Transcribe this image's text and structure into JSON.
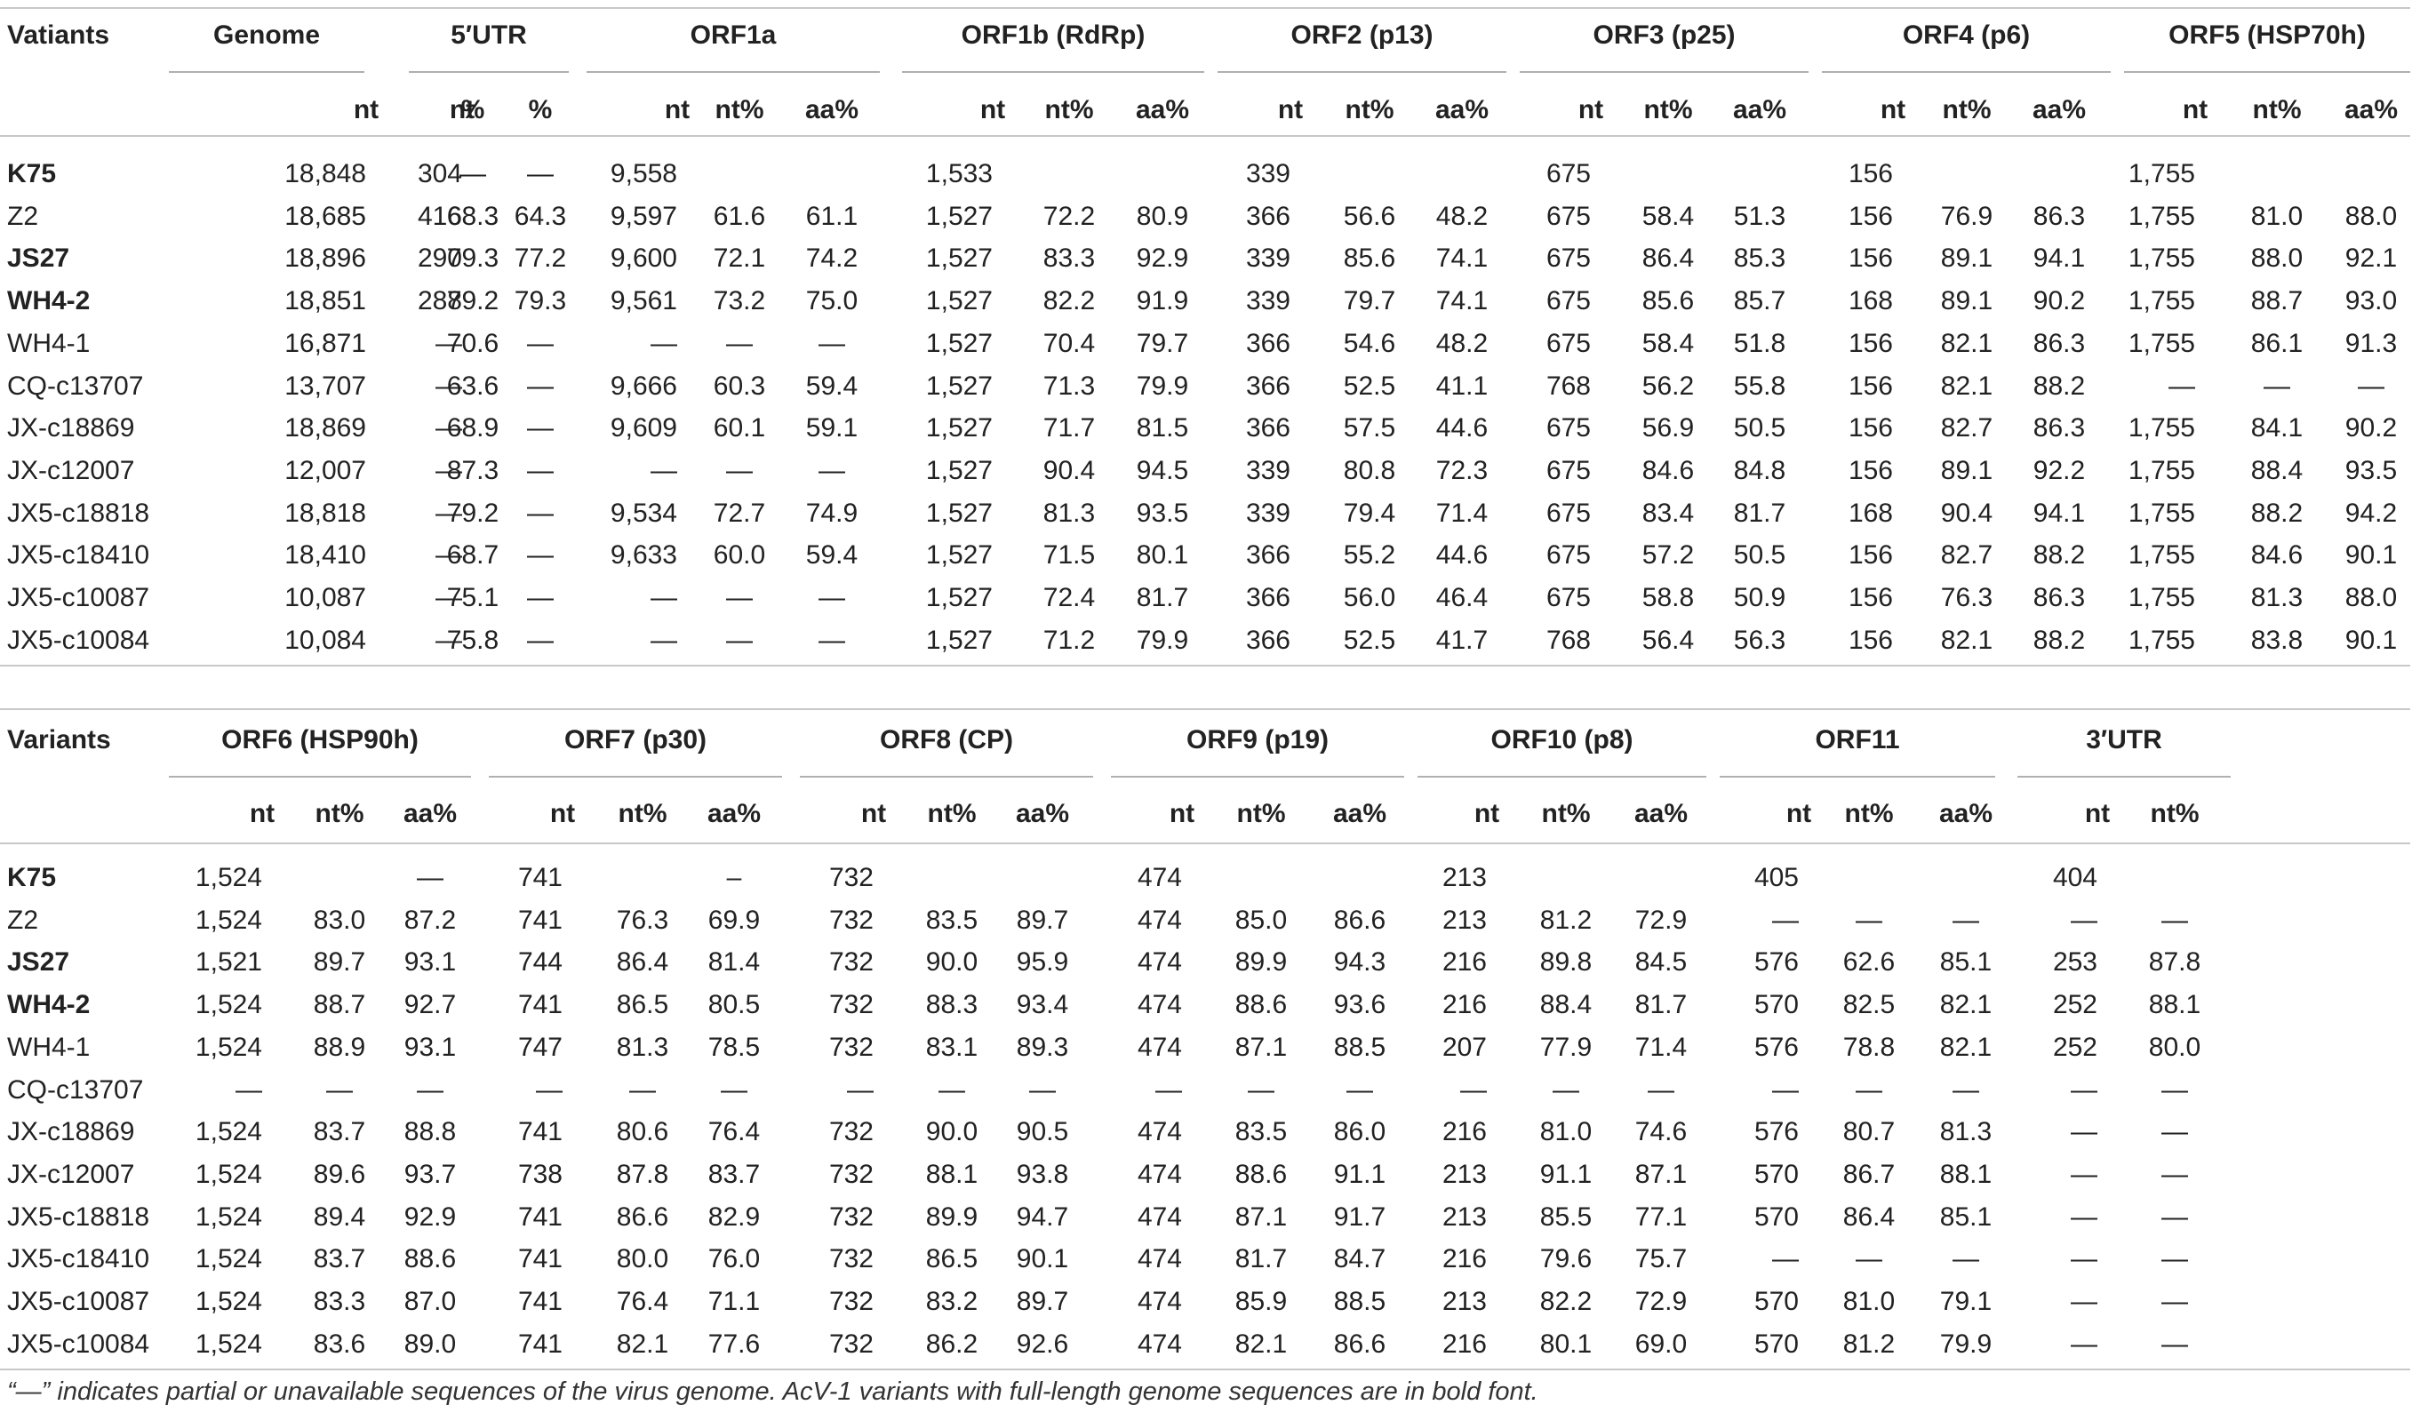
{
  "table1": {
    "variant_label": "Vatiants",
    "groups": [
      {
        "label": "Genome",
        "cols": [
          "nt",
          "%"
        ]
      },
      {
        "label": "5′UTR",
        "cols": [
          "nt",
          "%"
        ]
      },
      {
        "label": "ORF1a",
        "cols": [
          "nt",
          "nt%",
          "aa%"
        ]
      },
      {
        "label": "ORF1b (RdRp)",
        "cols": [
          "nt",
          "nt%",
          "aa%"
        ]
      },
      {
        "label": "ORF2 (p13)",
        "cols": [
          "nt",
          "nt%",
          "aa%"
        ]
      },
      {
        "label": "ORF3 (p25)",
        "cols": [
          "nt",
          "nt%",
          "aa%"
        ]
      },
      {
        "label": "ORF4 (p6)",
        "cols": [
          "nt",
          "nt%",
          "aa%"
        ]
      },
      {
        "label": "ORF5 (HSP70h)",
        "cols": [
          "nt",
          "nt%",
          "aa%"
        ]
      }
    ],
    "rows": [
      {
        "name": "K75",
        "bold": true,
        "cells": [
          "18,848",
          "—",
          "304",
          "—",
          "9,558",
          "",
          "",
          "1,533",
          "",
          "",
          "339",
          "",
          "",
          "675",
          "",
          "",
          "156",
          "",
          "",
          "1,755",
          "",
          ""
        ]
      },
      {
        "name": "Z2",
        "bold": false,
        "cells": [
          "18,685",
          "68.3",
          "416",
          "64.3",
          "9,597",
          "61.6",
          "61.1",
          "1,527",
          "72.2",
          "80.9",
          "366",
          "56.6",
          "48.2",
          "675",
          "58.4",
          "51.3",
          "156",
          "76.9",
          "86.3",
          "1,755",
          "81.0",
          "88.0"
        ]
      },
      {
        "name": "JS27",
        "bold": true,
        "cells": [
          "18,896",
          "79.3",
          "290",
          "77.2",
          "9,600",
          "72.1",
          "74.2",
          "1,527",
          "83.3",
          "92.9",
          "339",
          "85.6",
          "74.1",
          "675",
          "86.4",
          "85.3",
          "156",
          "89.1",
          "94.1",
          "1,755",
          "88.0",
          "92.1"
        ]
      },
      {
        "name": "WH4-2",
        "bold": true,
        "cells": [
          "18,851",
          "79.2",
          "288",
          "79.3",
          "9,561",
          "73.2",
          "75.0",
          "1,527",
          "82.2",
          "91.9",
          "339",
          "79.7",
          "74.1",
          "675",
          "85.6",
          "85.7",
          "168",
          "89.1",
          "90.2",
          "1,755",
          "88.7",
          "93.0"
        ]
      },
      {
        "name": "WH4-1",
        "bold": false,
        "cells": [
          "16,871",
          "70.6",
          "—",
          "—",
          "—",
          "—",
          "—",
          "1,527",
          "70.4",
          "79.7",
          "366",
          "54.6",
          "48.2",
          "675",
          "58.4",
          "51.8",
          "156",
          "82.1",
          "86.3",
          "1,755",
          "86.1",
          "91.3"
        ]
      },
      {
        "name": "CQ-c13707",
        "bold": false,
        "cells": [
          "13,707",
          "63.6",
          "—",
          "—",
          "9,666",
          "60.3",
          "59.4",
          "1,527",
          "71.3",
          "79.9",
          "366",
          "52.5",
          "41.1",
          "768",
          "56.2",
          "55.8",
          "156",
          "82.1",
          "88.2",
          "—",
          "—",
          "—"
        ]
      },
      {
        "name": "JX-c18869",
        "bold": false,
        "cells": [
          "18,869",
          "68.9",
          "—",
          "—",
          "9,609",
          "60.1",
          "59.1",
          "1,527",
          "71.7",
          "81.5",
          "366",
          "57.5",
          "44.6",
          "675",
          "56.9",
          "50.5",
          "156",
          "82.7",
          "86.3",
          "1,755",
          "84.1",
          "90.2"
        ]
      },
      {
        "name": "JX-c12007",
        "bold": false,
        "cells": [
          "12,007",
          "87.3",
          "—",
          "—",
          "—",
          "—",
          "—",
          "1,527",
          "90.4",
          "94.5",
          "339",
          "80.8",
          "72.3",
          "675",
          "84.6",
          "84.8",
          "156",
          "89.1",
          "92.2",
          "1,755",
          "88.4",
          "93.5"
        ]
      },
      {
        "name": "JX5-c18818",
        "bold": false,
        "cells": [
          "18,818",
          "79.2",
          "—",
          "—",
          "9,534",
          "72.7",
          "74.9",
          "1,527",
          "81.3",
          "93.5",
          "339",
          "79.4",
          "71.4",
          "675",
          "83.4",
          "81.7",
          "168",
          "90.4",
          "94.1",
          "1,755",
          "88.2",
          "94.2"
        ]
      },
      {
        "name": "JX5-c18410",
        "bold": false,
        "cells": [
          "18,410",
          "68.7",
          "—",
          "—",
          "9,633",
          "60.0",
          "59.4",
          "1,527",
          "71.5",
          "80.1",
          "366",
          "55.2",
          "44.6",
          "675",
          "57.2",
          "50.5",
          "156",
          "82.7",
          "88.2",
          "1,755",
          "84.6",
          "90.1"
        ]
      },
      {
        "name": "JX5-c10087",
        "bold": false,
        "cells": [
          "10,087",
          "75.1",
          "—",
          "—",
          "—",
          "—",
          "—",
          "1,527",
          "72.4",
          "81.7",
          "366",
          "56.0",
          "46.4",
          "675",
          "58.8",
          "50.9",
          "156",
          "76.3",
          "86.3",
          "1,755",
          "81.3",
          "88.0"
        ]
      },
      {
        "name": "JX5-c10084",
        "bold": false,
        "cells": [
          "10,084",
          "75.8",
          "—",
          "—",
          "—",
          "—",
          "—",
          "1,527",
          "71.2",
          "79.9",
          "366",
          "52.5",
          "41.7",
          "768",
          "56.4",
          "56.3",
          "156",
          "82.1",
          "88.2",
          "1,755",
          "83.8",
          "90.1"
        ]
      }
    ]
  },
  "table2": {
    "variant_label": "Variants",
    "groups": [
      {
        "label": "ORF6 (HSP90h)",
        "cols": [
          "nt",
          "nt%",
          "aa%"
        ]
      },
      {
        "label": "ORF7 (p30)",
        "cols": [
          "nt",
          "nt%",
          "aa%"
        ]
      },
      {
        "label": "ORF8 (CP)",
        "cols": [
          "nt",
          "nt%",
          "aa%"
        ]
      },
      {
        "label": "ORF9 (p19)",
        "cols": [
          "nt",
          "nt%",
          "aa%"
        ]
      },
      {
        "label": "ORF10 (p8)",
        "cols": [
          "nt",
          "nt%",
          "aa%"
        ]
      },
      {
        "label": "ORF11",
        "cols": [
          "nt",
          "nt%",
          "aa%"
        ]
      },
      {
        "label": "3′UTR",
        "cols": [
          "nt",
          "nt%"
        ]
      }
    ],
    "rows": [
      {
        "name": "K75",
        "bold": true,
        "cells": [
          "1,524",
          "",
          "—",
          "741",
          "",
          "–",
          "732",
          "",
          "",
          "474",
          "",
          "",
          "213",
          "",
          "",
          "405",
          "",
          "",
          "404",
          ""
        ]
      },
      {
        "name": "Z2",
        "bold": false,
        "cells": [
          "1,524",
          "83.0",
          "87.2",
          "741",
          "76.3",
          "69.9",
          "732",
          "83.5",
          "89.7",
          "474",
          "85.0",
          "86.6",
          "213",
          "81.2",
          "72.9",
          "—",
          "—",
          "—",
          "—",
          "—"
        ]
      },
      {
        "name": "JS27",
        "bold": true,
        "cells": [
          "1,521",
          "89.7",
          "93.1",
          "744",
          "86.4",
          "81.4",
          "732",
          "90.0",
          "95.9",
          "474",
          "89.9",
          "94.3",
          "216",
          "89.8",
          "84.5",
          "576",
          "62.6",
          "85.1",
          "253",
          "87.8"
        ]
      },
      {
        "name": "WH4-2",
        "bold": true,
        "cells": [
          "1,524",
          "88.7",
          "92.7",
          "741",
          "86.5",
          "80.5",
          "732",
          "88.3",
          "93.4",
          "474",
          "88.6",
          "93.6",
          "216",
          "88.4",
          "81.7",
          "570",
          "82.5",
          "82.1",
          "252",
          "88.1"
        ]
      },
      {
        "name": "WH4-1",
        "bold": false,
        "cells": [
          "1,524",
          "88.9",
          "93.1",
          "747",
          "81.3",
          "78.5",
          "732",
          "83.1",
          "89.3",
          "474",
          "87.1",
          "88.5",
          "207",
          "77.9",
          "71.4",
          "576",
          "78.8",
          "82.1",
          "252",
          "80.0"
        ]
      },
      {
        "name": "CQ-c13707",
        "bold": false,
        "cells": [
          "—",
          "—",
          "—",
          "—",
          "—",
          "—",
          "—",
          "—",
          "—",
          "—",
          "—",
          "—",
          "—",
          "—",
          "—",
          "—",
          "—",
          "—",
          "—",
          "—"
        ]
      },
      {
        "name": "JX-c18869",
        "bold": false,
        "cells": [
          "1,524",
          "83.7",
          "88.8",
          "741",
          "80.6",
          "76.4",
          "732",
          "90.0",
          "90.5",
          "474",
          "83.5",
          "86.0",
          "216",
          "81.0",
          "74.6",
          "576",
          "80.7",
          "81.3",
          "—",
          "—"
        ]
      },
      {
        "name": "JX-c12007",
        "bold": false,
        "cells": [
          "1,524",
          "89.6",
          "93.7",
          "738",
          "87.8",
          "83.7",
          "732",
          "88.1",
          "93.8",
          "474",
          "88.6",
          "91.1",
          "213",
          "91.1",
          "87.1",
          "570",
          "86.7",
          "88.1",
          "—",
          "—"
        ]
      },
      {
        "name": "JX5-c18818",
        "bold": false,
        "cells": [
          "1,524",
          "89.4",
          "92.9",
          "741",
          "86.6",
          "82.9",
          "732",
          "89.9",
          "94.7",
          "474",
          "87.1",
          "91.7",
          "213",
          "85.5",
          "77.1",
          "570",
          "86.4",
          "85.1",
          "—",
          "—"
        ]
      },
      {
        "name": "JX5-c18410",
        "bold": false,
        "cells": [
          "1,524",
          "83.7",
          "88.6",
          "741",
          "80.0",
          "76.0",
          "732",
          "86.5",
          "90.1",
          "474",
          "81.7",
          "84.7",
          "216",
          "79.6",
          "75.7",
          "—",
          "—",
          "—",
          "—",
          "—"
        ]
      },
      {
        "name": "JX5-c10087",
        "bold": false,
        "cells": [
          "1,524",
          "83.3",
          "87.0",
          "741",
          "76.4",
          "71.1",
          "732",
          "83.2",
          "89.7",
          "474",
          "85.9",
          "88.5",
          "213",
          "82.2",
          "72.9",
          "570",
          "81.0",
          "79.1",
          "—",
          "—"
        ]
      },
      {
        "name": "JX5-c10084",
        "bold": false,
        "cells": [
          "1,524",
          "83.6",
          "89.0",
          "741",
          "82.1",
          "77.6",
          "732",
          "86.2",
          "92.6",
          "474",
          "82.1",
          "86.6",
          "216",
          "80.1",
          "69.0",
          "570",
          "81.2",
          "79.9",
          "—",
          "—"
        ]
      }
    ]
  },
  "footnote": "“—” indicates partial or unavailable sequences of the virus genome. AcV-1 variants with full-length genome sequences are in bold font."
}
